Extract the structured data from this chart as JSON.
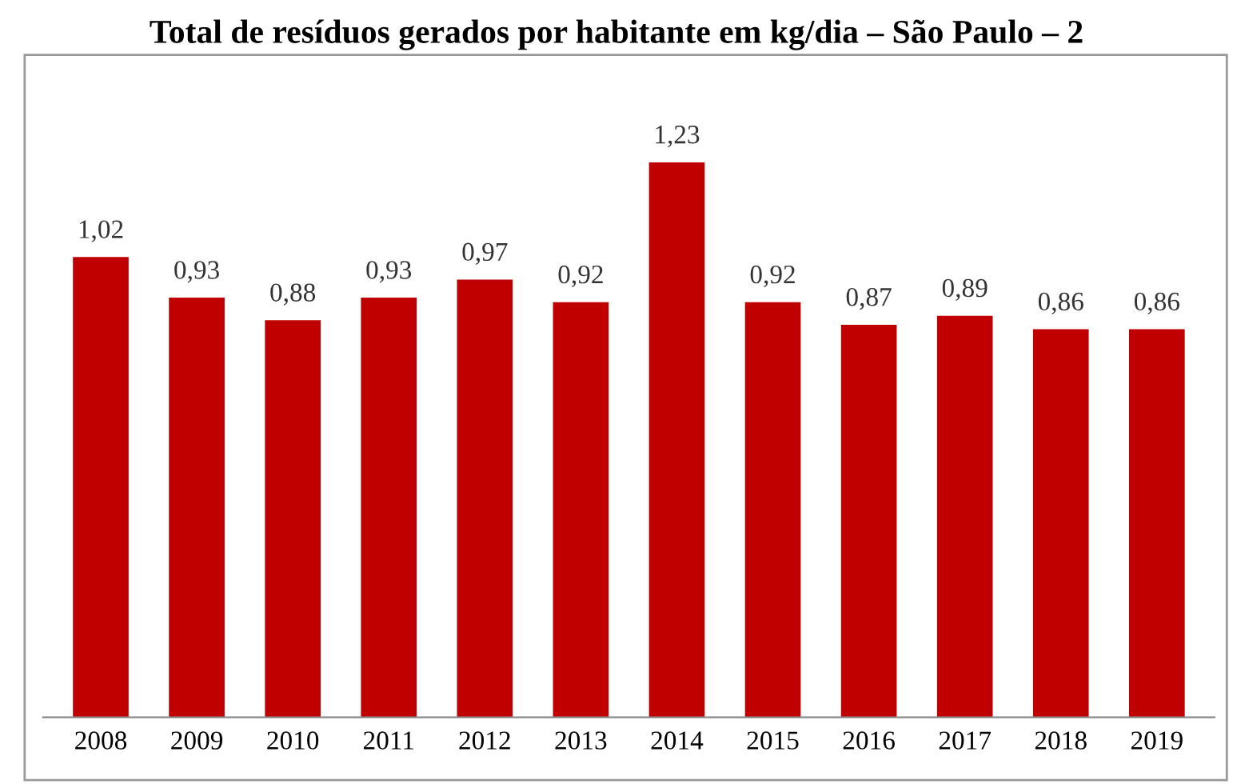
{
  "chart_data": {
    "type": "bar",
    "title": "Total de resíduos gerados por habitante em kg/dia – São Paulo – 2",
    "categories": [
      "2008",
      "2009",
      "2010",
      "2011",
      "2012",
      "2013",
      "2014",
      "2015",
      "2016",
      "2017",
      "2018",
      "2019"
    ],
    "values": [
      1.02,
      0.93,
      0.88,
      0.93,
      0.97,
      0.92,
      1.23,
      0.92,
      0.87,
      0.89,
      0.86,
      0.86
    ],
    "value_labels": [
      "1,02",
      "0,93",
      "0,88",
      "0,93",
      "0,97",
      "0,92",
      "1,23",
      "0,92",
      "0,87",
      "0,89",
      "0,86",
      "0,86"
    ],
    "color": "#c00000",
    "grid": false,
    "legend": false
  }
}
